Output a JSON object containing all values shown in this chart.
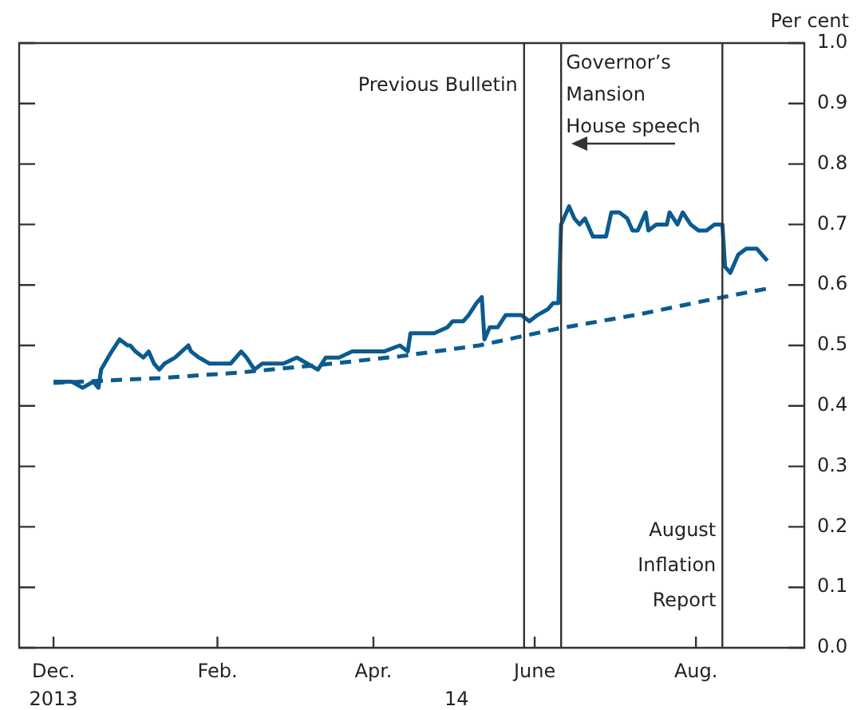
{
  "chart_data": {
    "type": "line",
    "ylabel": "Per cent",
    "xlim": [
      "2013-11-18",
      "2014-09-11"
    ],
    "xticks": [
      {
        "value": "2013-12-01",
        "label": "Dec."
      },
      {
        "value": "2014-02-01",
        "label": "Feb."
      },
      {
        "value": "2014-04-01",
        "label": "Apr."
      },
      {
        "value": "2014-06-01",
        "label": "June"
      },
      {
        "value": "2014-08-01",
        "label": "Aug."
      }
    ],
    "annotations": [
      "2013",
      "14"
    ],
    "ylim": [
      0,
      1
    ],
    "yticks": [
      {
        "value": 0,
        "label": "0.0"
      },
      0.1,
      0.2,
      0.3,
      0.4,
      0.5,
      0.6,
      0.7,
      0.8,
      0.9,
      {
        "value": 1,
        "label": "1.0"
      }
    ],
    "series": [
      {
        "color": "#0b5b8f",
        "line_style": "solid",
        "x": [
          "2013-12-01",
          "2013-12-08",
          "2013-12-12",
          "2013-12-16",
          "2013-12-18",
          "2013-12-19",
          "2013-12-23",
          "2013-12-26",
          "2013-12-29",
          "2013-12-30",
          "2014-01-01",
          "2014-01-04",
          "2014-01-06",
          "2014-01-08",
          "2014-01-10",
          "2014-01-12",
          "2014-01-16",
          "2014-01-21",
          "2014-01-22",
          "2014-01-25",
          "2014-01-29",
          "2014-02-03",
          "2014-02-06",
          "2014-02-10",
          "2014-02-12",
          "2014-02-15",
          "2014-02-18",
          "2014-02-21",
          "2014-02-26",
          "2014-03-03",
          "2014-03-07",
          "2014-03-11",
          "2014-03-14",
          "2014-03-19",
          "2014-03-24",
          "2014-03-30",
          "2014-04-02",
          "2014-04-05",
          "2014-04-11",
          "2014-04-14",
          "2014-04-15",
          "2014-04-19",
          "2014-04-21",
          "2014-04-24",
          "2014-04-29",
          "2014-05-01",
          "2014-05-05",
          "2014-05-07",
          "2014-05-10",
          "2014-05-12",
          "2014-05-13",
          "2014-05-15",
          "2014-05-18",
          "2014-05-21",
          "2014-05-25",
          "2014-05-27",
          "2014-05-30",
          "2014-06-02",
          "2014-06-06",
          "2014-06-08",
          "2014-06-10",
          "2014-06-11",
          "2014-06-14",
          "2014-06-16",
          "2014-06-18",
          "2014-06-20",
          "2014-06-23",
          "2014-06-25",
          "2014-06-28",
          "2014-06-30",
          "2014-07-03",
          "2014-07-06",
          "2014-07-08",
          "2014-07-10",
          "2014-07-13",
          "2014-07-14",
          "2014-07-17",
          "2014-07-21",
          "2014-07-22",
          "2014-07-25",
          "2014-07-27",
          "2014-07-30",
          "2014-08-02",
          "2014-08-05",
          "2014-08-08",
          "2014-08-11",
          "2014-08-12",
          "2014-08-14",
          "2014-08-17",
          "2014-08-20",
          "2014-08-22",
          "2014-08-24",
          "2014-08-26",
          "2014-08-28"
        ],
        "values": [
          0.44,
          0.44,
          0.43,
          0.44,
          0.43,
          0.46,
          0.49,
          0.51,
          0.5,
          0.5,
          0.49,
          0.48,
          0.49,
          0.47,
          0.46,
          0.47,
          0.48,
          0.5,
          0.49,
          0.48,
          0.47,
          0.47,
          0.47,
          0.49,
          0.48,
          0.46,
          0.47,
          0.47,
          0.47,
          0.48,
          0.47,
          0.46,
          0.48,
          0.48,
          0.49,
          0.49,
          0.49,
          0.49,
          0.5,
          0.49,
          0.52,
          0.52,
          0.52,
          0.52,
          0.53,
          0.54,
          0.54,
          0.55,
          0.57,
          0.58,
          0.51,
          0.53,
          0.53,
          0.55,
          0.55,
          0.55,
          0.54,
          0.55,
          0.56,
          0.57,
          0.57,
          0.7,
          0.73,
          0.71,
          0.7,
          0.71,
          0.68,
          0.68,
          0.68,
          0.72,
          0.72,
          0.71,
          0.69,
          0.69,
          0.72,
          0.69,
          0.7,
          0.7,
          0.72,
          0.7,
          0.72,
          0.7,
          0.69,
          0.69,
          0.7,
          0.7,
          0.63,
          0.62,
          0.65,
          0.66,
          0.66,
          0.66,
          0.65,
          0.64
        ]
      },
      {
        "color": "#0b5b8f",
        "line_style": "dashed",
        "x": [
          "2013-12-01",
          "2014-01-10",
          "2014-02-09",
          "2014-03-10",
          "2014-04-11",
          "2014-05-11",
          "2014-06-10",
          "2014-07-10",
          "2014-08-09",
          "2014-08-28"
        ],
        "values": [
          0.438,
          0.446,
          0.455,
          0.467,
          0.482,
          0.5,
          0.528,
          0.551,
          0.578,
          0.594
        ]
      }
    ],
    "ref_lines": [
      {
        "axis": "x",
        "value": "2014-05-28",
        "label": "Previous Bulletin",
        "color": "#333333"
      },
      {
        "axis": "x",
        "value": "2014-06-11",
        "label": "Governor’s\nMansion\nHouse speech",
        "color": "#333333"
      },
      {
        "axis": "x",
        "value": "2014-08-11",
        "label": "August\nInflation\nReport",
        "color": "#333333"
      }
    ]
  }
}
